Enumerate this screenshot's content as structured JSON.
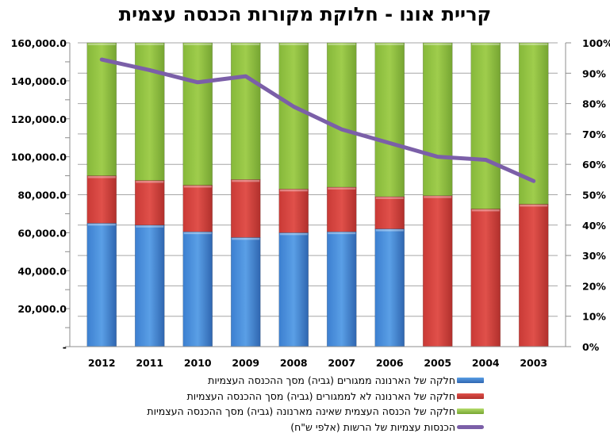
{
  "chart_data": {
    "type": "bar",
    "subtype": "stacked-bar-with-line",
    "title": "קריית אונו - חלוקת מקורות הכנסה עצמית",
    "categories": [
      "2012",
      "2011",
      "2010",
      "2009",
      "2008",
      "2007",
      "2006",
      "2005",
      "2004",
      "2003"
    ],
    "left_axis": {
      "ylim": [
        0,
        160000
      ],
      "tick_labels": [
        "-",
        "20,000.0",
        "40,000.0",
        "60,000.0",
        "80,000.0",
        "100,000.0",
        "120,000.0",
        "140,000.0",
        "160,000.0"
      ],
      "tick_values": [
        0,
        20000,
        40000,
        60000,
        80000,
        100000,
        120000,
        140000,
        160000
      ]
    },
    "right_axis": {
      "ylim": [
        0,
        100
      ],
      "tick_labels": [
        "0%",
        "10%",
        "20%",
        "30%",
        "40%",
        "50%",
        "60%",
        "70%",
        "80%",
        "90%",
        "100%"
      ],
      "tick_values": [
        0,
        10,
        20,
        30,
        40,
        50,
        60,
        70,
        80,
        90,
        100
      ]
    },
    "grid": true,
    "legend_position": "bottom",
    "series": [
      {
        "name": "חלקה של הארנונה ממגורים (גביה) מסך ההכנסה העצמיות",
        "kind": "stacked-bar",
        "axis": "left",
        "color": "#4a8fdd",
        "values": [
          65000,
          64000,
          60500,
          57500,
          60000,
          60500,
          62000,
          0,
          0,
          0
        ]
      },
      {
        "name": "חלקה של הארנונה לא לממגורים (גביה) מסך ההכנסה העצמיות",
        "kind": "stacked-bar",
        "axis": "left",
        "color": "#d94a45",
        "values": [
          25000,
          23500,
          24500,
          30500,
          23000,
          23500,
          17000,
          79500,
          72500,
          75000
        ]
      },
      {
        "name": "חלקה של הכנסה העצמית שאינה מארנונה (גביה) מסך ההכנסה העצמיות",
        "kind": "stacked-bar",
        "axis": "left",
        "color": "#8fbf3e",
        "values": [
          70000,
          72500,
          75000,
          72000,
          77000,
          76000,
          81000,
          80500,
          87500,
          85000
        ]
      },
      {
        "name": "הכנסות עצמיות של הרשות  (אלפי ש\"ח)",
        "kind": "line",
        "axis": "right",
        "color": "#7b5fa8",
        "values": [
          94.5,
          91,
          87,
          89,
          79,
          71.5,
          67,
          62.5,
          61.5,
          54.5
        ]
      }
    ]
  }
}
